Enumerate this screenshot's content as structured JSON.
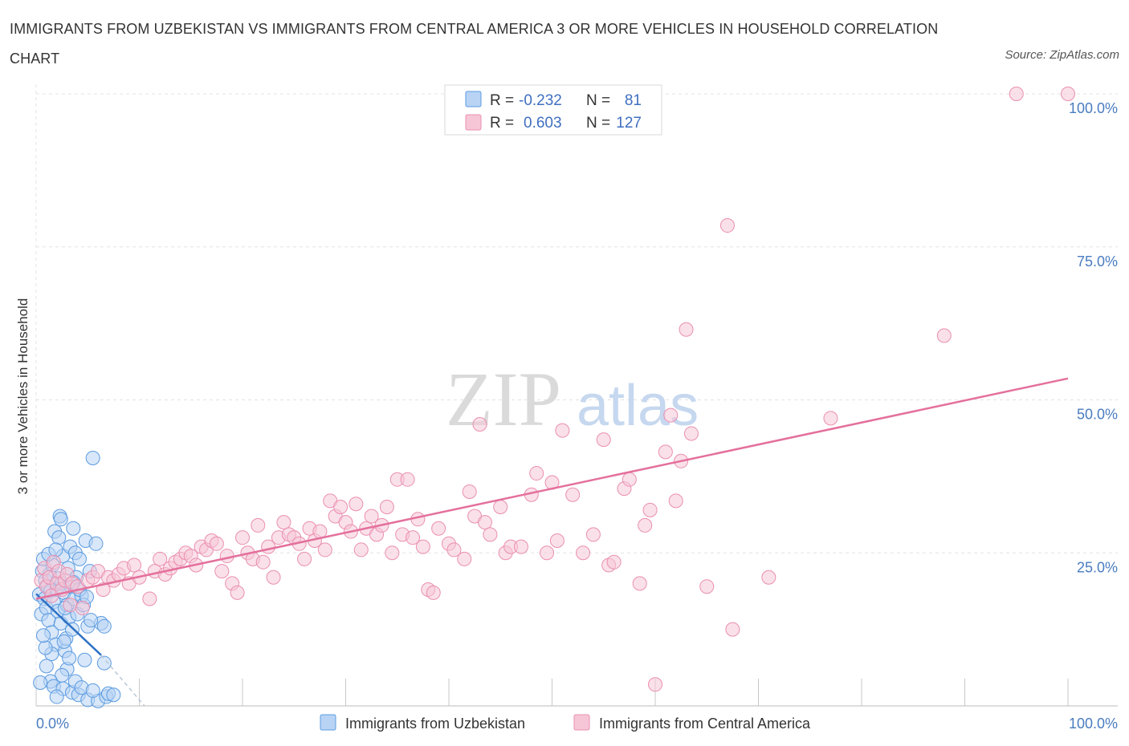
{
  "header": {
    "title": "IMMIGRANTS FROM UZBEKISTAN VS IMMIGRANTS FROM CENTRAL AMERICA 3 OR MORE VEHICLES IN HOUSEHOLD CORRELATION CHART",
    "source": "Source: ZipAtlas.com"
  },
  "watermark": {
    "zip": "ZIP",
    "atlas": "atlas"
  },
  "colors": {
    "blue": "#5b9be0",
    "blue_fill": "#b8d3f4",
    "blue_line": "#2f72c4",
    "pink": "#ea8fb0",
    "pink_fill": "#f6c6d7",
    "pink_line": "#e4709c"
  },
  "stats_legend": {
    "r_label": "R =",
    "n_label": "N =",
    "rows": [
      {
        "series": "Immigrants from Uzbekistan",
        "r": "-0.232",
        "n": "81"
      },
      {
        "series": "Immigrants from Central America",
        "r": "0.603",
        "n": "127"
      }
    ]
  },
  "chart_data": {
    "type": "scatter",
    "title": "IMMIGRANTS FROM UZBEKISTAN VS IMMIGRANTS FROM CENTRAL AMERICA 3 OR MORE VEHICLES IN HOUSEHOLD CORRELATION CHART",
    "xlabel": "",
    "ylabel": "3 or more Vehicles in Household",
    "xlim": [
      0,
      100
    ],
    "ylim": [
      0,
      100
    ],
    "x_tick_labels": [
      "0.0%",
      "100.0%"
    ],
    "y_tick_labels": [
      {
        "value": 100,
        "label": "100.0%"
      },
      {
        "value": 75,
        "label": "75.0%"
      },
      {
        "value": 50,
        "label": "50.0%"
      },
      {
        "value": 25,
        "label": "25.0%"
      }
    ],
    "grid": true,
    "legend_position": "bottom",
    "series": [
      {
        "name": "Immigrants from Uzbekistan",
        "color": "#5b9be0",
        "trend": {
          "x": [
            0,
            6.3
          ],
          "y": [
            18.3,
            8.3
          ],
          "dashed_extension_to": [
            10.5,
            0
          ]
        },
        "points": [
          [
            0.3,
            18.2
          ],
          [
            0.5,
            15.0
          ],
          [
            0.6,
            22.0
          ],
          [
            0.7,
            24.0
          ],
          [
            0.8,
            17.5
          ],
          [
            0.9,
            20.5
          ],
          [
            1.0,
            16.0
          ],
          [
            1.1,
            19.5
          ],
          [
            1.2,
            14.0
          ],
          [
            1.3,
            21.5
          ],
          [
            1.4,
            18.8
          ],
          [
            1.5,
            12.0
          ],
          [
            1.6,
            23.0
          ],
          [
            1.7,
            17.0
          ],
          [
            1.8,
            28.5
          ],
          [
            1.9,
            10.0
          ],
          [
            2.0,
            19.0
          ],
          [
            2.1,
            15.5
          ],
          [
            2.2,
            27.5
          ],
          [
            2.3,
            31.0
          ],
          [
            2.4,
            13.5
          ],
          [
            2.5,
            20.0
          ],
          [
            2.6,
            24.5
          ],
          [
            2.7,
            18.5
          ],
          [
            2.8,
            9.0
          ],
          [
            2.9,
            11.0
          ],
          [
            3.0,
            16.5
          ],
          [
            3.1,
            22.5
          ],
          [
            3.2,
            14.5
          ],
          [
            3.3,
            26.0
          ],
          [
            3.4,
            19.5
          ],
          [
            3.5,
            12.5
          ],
          [
            3.6,
            29.0
          ],
          [
            3.7,
            17.5
          ],
          [
            3.8,
            25.0
          ],
          [
            3.9,
            21.0
          ],
          [
            4.0,
            15.0
          ],
          [
            4.2,
            24.0
          ],
          [
            4.4,
            18.0
          ],
          [
            4.6,
            16.5
          ],
          [
            4.8,
            27.0
          ],
          [
            5.0,
            13.0
          ],
          [
            5.2,
            22.0
          ],
          [
            5.5,
            40.5
          ],
          [
            5.8,
            26.5
          ],
          [
            6.3,
            13.5
          ],
          [
            6.6,
            13.0
          ],
          [
            2.4,
            30.5
          ],
          [
            3.0,
            6.0
          ],
          [
            2.5,
            5.0
          ],
          [
            1.4,
            4.0
          ],
          [
            0.4,
            3.8
          ],
          [
            3.2,
            7.8
          ],
          [
            4.7,
            7.5
          ],
          [
            6.6,
            7.0
          ],
          [
            1.7,
            3.2
          ],
          [
            2.6,
            2.8
          ],
          [
            3.5,
            2.2
          ],
          [
            4.1,
            1.8
          ],
          [
            5.0,
            1.0
          ],
          [
            6.0,
            0.8
          ],
          [
            6.8,
            1.5
          ],
          [
            2.0,
            1.5
          ],
          [
            2.7,
            10.5
          ],
          [
            1.5,
            8.5
          ],
          [
            0.9,
            9.5
          ],
          [
            3.8,
            4.0
          ],
          [
            4.4,
            3.0
          ],
          [
            1.0,
            6.5
          ],
          [
            5.5,
            2.5
          ],
          [
            7.0,
            2.0
          ],
          [
            7.5,
            1.8
          ],
          [
            1.2,
            24.8
          ],
          [
            2.2,
            20.8
          ],
          [
            3.6,
            20.2
          ],
          [
            4.2,
            19.0
          ],
          [
            2.8,
            16.0
          ],
          [
            5.3,
            14.0
          ],
          [
            0.7,
            11.5
          ],
          [
            1.9,
            25.5
          ],
          [
            4.9,
            17.8
          ]
        ]
      },
      {
        "name": "Immigrants from Central America",
        "color": "#ea8fb0",
        "trend": {
          "x": [
            0,
            100
          ],
          "y": [
            17.5,
            53.5
          ]
        },
        "points": [
          [
            0.5,
            20.5
          ],
          [
            0.8,
            22.5
          ],
          [
            1.0,
            19.5
          ],
          [
            1.3,
            21.0
          ],
          [
            1.5,
            18.0
          ],
          [
            1.7,
            23.5
          ],
          [
            2.0,
            20.0
          ],
          [
            2.2,
            22.0
          ],
          [
            2.5,
            19.0
          ],
          [
            2.8,
            20.5
          ],
          [
            3.0,
            21.5
          ],
          [
            3.3,
            16.5
          ],
          [
            3.5,
            20.0
          ],
          [
            4.0,
            19.5
          ],
          [
            4.5,
            16.0
          ],
          [
            5.0,
            20.5
          ],
          [
            5.5,
            21.0
          ],
          [
            6.0,
            22.0
          ],
          [
            6.5,
            19.0
          ],
          [
            7.0,
            21.0
          ],
          [
            7.5,
            20.5
          ],
          [
            8.0,
            21.5
          ],
          [
            8.5,
            22.5
          ],
          [
            9.0,
            20.0
          ],
          [
            9.5,
            23.0
          ],
          [
            10.0,
            21.0
          ],
          [
            11.0,
            17.5
          ],
          [
            11.5,
            22.0
          ],
          [
            12.0,
            24.0
          ],
          [
            12.5,
            21.5
          ],
          [
            13.0,
            22.5
          ],
          [
            13.5,
            23.5
          ],
          [
            14.0,
            24.0
          ],
          [
            14.5,
            25.0
          ],
          [
            15.0,
            24.5
          ],
          [
            15.5,
            23.0
          ],
          [
            16.0,
            26.0
          ],
          [
            16.5,
            25.5
          ],
          [
            17.0,
            27.0
          ],
          [
            17.5,
            26.5
          ],
          [
            18.0,
            22.0
          ],
          [
            18.5,
            24.5
          ],
          [
            19.0,
            20.0
          ],
          [
            19.5,
            18.5
          ],
          [
            20.0,
            27.5
          ],
          [
            20.5,
            25.0
          ],
          [
            21.0,
            24.0
          ],
          [
            21.5,
            29.5
          ],
          [
            22.0,
            23.5
          ],
          [
            22.5,
            26.0
          ],
          [
            23.0,
            21.0
          ],
          [
            23.5,
            27.5
          ],
          [
            24.0,
            30.0
          ],
          [
            24.5,
            28.0
          ],
          [
            25.0,
            27.5
          ],
          [
            25.5,
            26.5
          ],
          [
            26.0,
            24.0
          ],
          [
            26.5,
            29.0
          ],
          [
            27.0,
            27.0
          ],
          [
            27.5,
            28.5
          ],
          [
            28.0,
            25.5
          ],
          [
            28.5,
            33.5
          ],
          [
            29.0,
            31.0
          ],
          [
            29.5,
            32.5
          ],
          [
            30.0,
            30.0
          ],
          [
            30.5,
            28.5
          ],
          [
            31.0,
            33.0
          ],
          [
            31.5,
            25.5
          ],
          [
            32.0,
            29.0
          ],
          [
            32.5,
            31.0
          ],
          [
            33.0,
            28.0
          ],
          [
            33.5,
            29.5
          ],
          [
            34.0,
            32.5
          ],
          [
            34.5,
            25.0
          ],
          [
            35.0,
            37.0
          ],
          [
            35.5,
            28.0
          ],
          [
            36.0,
            37.0
          ],
          [
            36.5,
            27.5
          ],
          [
            37.0,
            30.5
          ],
          [
            37.5,
            26.0
          ],
          [
            38.0,
            19.0
          ],
          [
            38.5,
            18.5
          ],
          [
            39.0,
            29.0
          ],
          [
            40.0,
            26.5
          ],
          [
            40.5,
            25.5
          ],
          [
            41.5,
            24.0
          ],
          [
            42.0,
            35.0
          ],
          [
            42.5,
            31.0
          ],
          [
            43.0,
            46.0
          ],
          [
            43.5,
            30.0
          ],
          [
            44.0,
            28.0
          ],
          [
            45.0,
            32.5
          ],
          [
            45.5,
            25.0
          ],
          [
            46.0,
            26.0
          ],
          [
            47.0,
            26.0
          ],
          [
            48.0,
            34.5
          ],
          [
            48.5,
            38.0
          ],
          [
            49.5,
            25.0
          ],
          [
            50.0,
            36.5
          ],
          [
            50.5,
            27.0
          ],
          [
            51.0,
            45.0
          ],
          [
            52.0,
            34.5
          ],
          [
            53.0,
            25.0
          ],
          [
            54.0,
            28.0
          ],
          [
            55.0,
            43.5
          ],
          [
            55.5,
            23.0
          ],
          [
            56.0,
            23.5
          ],
          [
            57.0,
            35.5
          ],
          [
            57.5,
            37.0
          ],
          [
            58.5,
            20.0
          ],
          [
            59.0,
            29.5
          ],
          [
            59.5,
            32.0
          ],
          [
            60.0,
            3.5
          ],
          [
            61.0,
            41.5
          ],
          [
            61.5,
            47.5
          ],
          [
            62.0,
            33.5
          ],
          [
            62.5,
            40.0
          ],
          [
            63.0,
            61.5
          ],
          [
            63.5,
            44.5
          ],
          [
            65.0,
            19.5
          ],
          [
            67.0,
            78.5
          ],
          [
            67.5,
            12.5
          ],
          [
            71.0,
            21.0
          ],
          [
            77.0,
            47.0
          ],
          [
            88.0,
            60.5
          ],
          [
            95.0,
            100.0
          ],
          [
            100.0,
            100.0
          ]
        ]
      }
    ]
  },
  "bottom_legend": {
    "items": [
      "Immigrants from Uzbekistan",
      "Immigrants from Central America"
    ]
  }
}
